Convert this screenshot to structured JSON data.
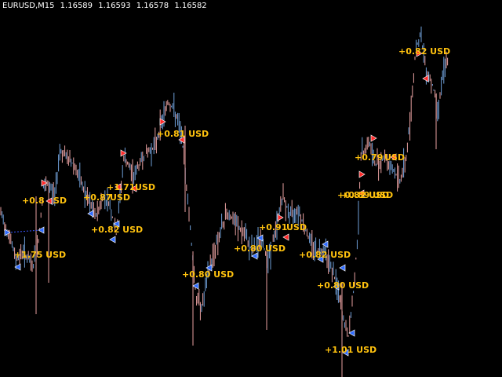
{
  "header": {
    "symbol": "EURUSD,M15",
    "open": "1.16589",
    "high": "1.16593",
    "low": "1.16578",
    "close": "1.16582"
  },
  "colors": {
    "background": "#000000",
    "candle_up": "#6f9fd8",
    "candle_down": "#e8a0a0",
    "buy_arrow": "#2f6bff",
    "sell_arrow": "#ff2a2a",
    "profit_text": "#ffc20e",
    "trade_line": "#3a55ff"
  },
  "trade_labels": [
    {
      "text": "+0.82 USD"
    },
    {
      "text": "+0.8"
    },
    {
      "text": "SD"
    },
    {
      "text": "+0.87"
    },
    {
      "text": "USD"
    },
    {
      "text": "+1.71"
    },
    {
      "text": "USD"
    },
    {
      "text": "+0.82 USD"
    },
    {
      "text": "+1.75 USD"
    },
    {
      "text": "+0.81 USD"
    },
    {
      "text": "+0.80 USD"
    },
    {
      "text": "+0.91"
    },
    {
      "text": "USD"
    },
    {
      "text": "+0.80"
    },
    {
      "text": "USD"
    },
    {
      "text": "+0.82 USD"
    },
    {
      "text": "+0.80 USD"
    },
    {
      "text": "+0.89 USD"
    },
    {
      "text": "+0.79"
    },
    {
      "text": "USD"
    },
    {
      "text": "+1.01 USD"
    },
    {
      "text": "+0.82 USD"
    }
  ]
}
